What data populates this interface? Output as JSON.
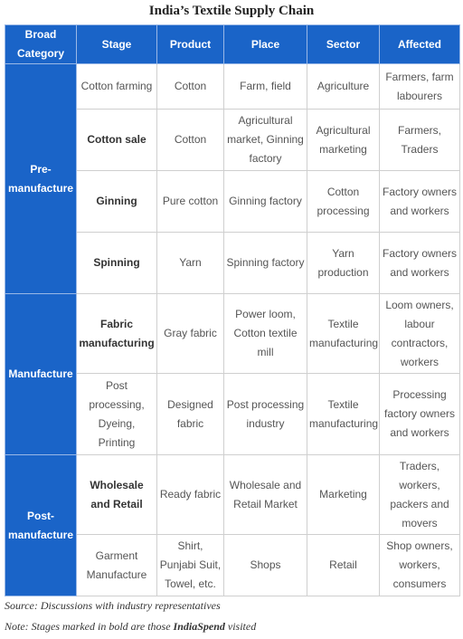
{
  "title": "India’s Textile Supply Chain",
  "table": {
    "header": [
      "Broad Category",
      "Stage",
      "Product",
      "Place",
      "Sector",
      "Affected"
    ],
    "groups": [
      {
        "category": "Pre-manufacture",
        "rows": [
          {
            "stage": "Cotton farming",
            "bold": false,
            "product": "Cotton",
            "place": "Farm, field",
            "sector": "Agriculture",
            "affected": "Farmers, farm labourers"
          },
          {
            "stage": "Cotton sale",
            "bold": true,
            "product": "Cotton",
            "place": "Agricultural market, Ginning factory",
            "sector": "Agricultural marketing",
            "affected": "Farmers, Traders"
          },
          {
            "stage": "Ginning",
            "bold": true,
            "product": "Pure cotton",
            "place": "Ginning factory",
            "sector": "Cotton processing",
            "affected": "Factory owners and workers"
          },
          {
            "stage": "Spinning",
            "bold": true,
            "product": "Yarn",
            "place": "Spinning factory",
            "sector": "Yarn production",
            "affected": "Factory owners and workers"
          }
        ]
      },
      {
        "category": "Manufacture",
        "rows": [
          {
            "stage": "Fabric manufacturing",
            "bold": true,
            "product": "Gray fabric",
            "place": "Power loom, Cotton textile mill",
            "sector": "Textile manufacturing",
            "affected": "Loom owners, labour contractors, workers"
          },
          {
            "stage": "Post processing, Dyeing, Printing",
            "bold": false,
            "product": "Designed fabric",
            "place": "Post processing industry",
            "sector": "Textile manufacturing",
            "affected": "Processing factory owners and workers"
          }
        ]
      },
      {
        "category": "Post-manufacture",
        "rows": [
          {
            "stage": "Wholesale and Retail",
            "bold": true,
            "product": "Ready fabric",
            "place": "Wholesale and Retail Market",
            "sector": "Marketing",
            "affected": "Traders, workers, packers and movers"
          },
          {
            "stage": "Garment Manufacture",
            "bold": false,
            "product": "Shirt, Punjabi Suit, Towel, etc.",
            "place": "Shops",
            "sector": "Retail",
            "affected": "Shop owners, workers, consumers"
          }
        ]
      }
    ]
  },
  "source": "Source: Discussions with industry representatives",
  "note": [
    "Note: Stages marked in bold are those ",
    "IndiaSpend",
    " visited"
  ]
}
